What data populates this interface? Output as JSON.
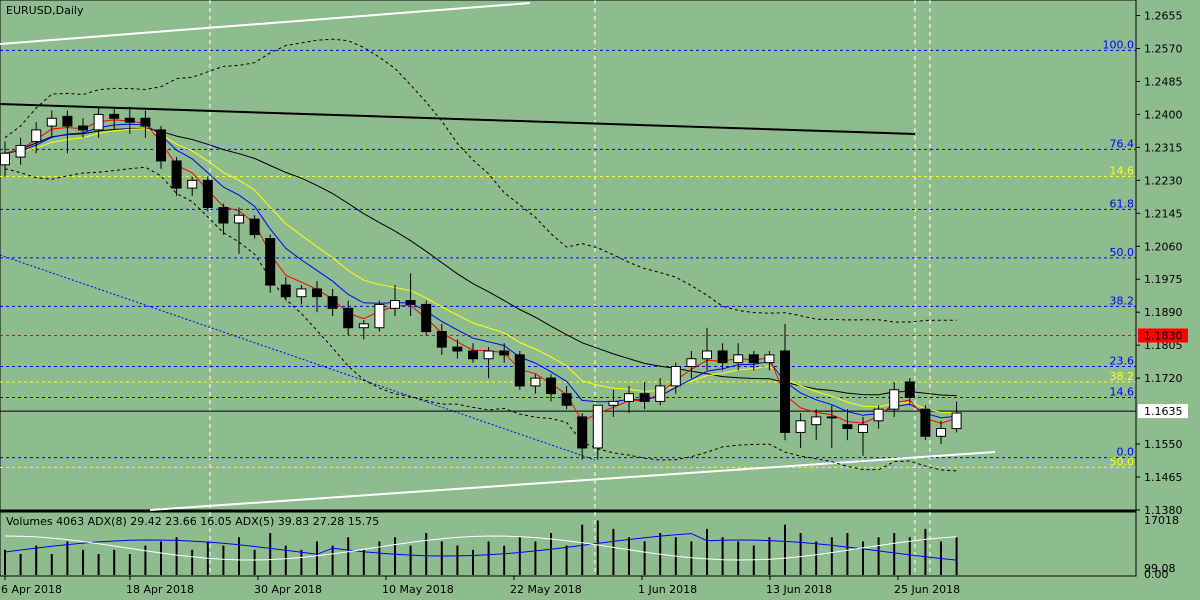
{
  "window": {
    "title": "EURUSD,Daily",
    "indicator_label": "Volumes 4063 ADX(8) 29.42 23.66 16.05 ADX(5) 39.83 27.28 15.75"
  },
  "colors": {
    "background": "#8fbc8f",
    "bull_candle": "#ffffff",
    "bear_candle": "#000000",
    "fib_blue": "#0000ff",
    "fib_yellow": "#ffff00",
    "resistance_red": "#ff0000",
    "ema_red": "#ff0000",
    "ema_blue": "#0000ff",
    "ema_yellow": "#ffff00",
    "ema_black": "#000000",
    "price_tag_bg": "#ffffff",
    "red_tag_bg": "#ff0000",
    "volume_line": "#000000",
    "adx_blue": "#0000ff",
    "adx_white": "#ffffff"
  },
  "chart_data": {
    "type": "candlestick",
    "symbol": "EURUSD",
    "timeframe": "Daily",
    "ylim": [
      1.138,
      1.2695
    ],
    "y_ticks": [
      "1.2655",
      "1.2570",
      "1.2485",
      "1.2400",
      "1.2315",
      "1.2230",
      "1.2145",
      "1.2060",
      "1.1975",
      "1.1890",
      "1.1805",
      "1.1720",
      "1.1550",
      "1.1465",
      "1.1380"
    ],
    "x_labels": [
      "6 Apr 2018",
      "18 Apr 2018",
      "30 Apr 2018",
      "10 May 2018",
      "22 May 2018",
      "1 Jun 2018",
      "13 Jun 2018",
      "25 Jun 2018"
    ],
    "current_price": "1.1635",
    "resistance_price": "1.1830",
    "candles": [
      {
        "o": 1.227,
        "h": 1.233,
        "l": 1.224,
        "c": 1.23
      },
      {
        "o": 1.229,
        "h": 1.234,
        "l": 1.227,
        "c": 1.232
      },
      {
        "o": 1.233,
        "h": 1.238,
        "l": 1.23,
        "c": 1.236
      },
      {
        "o": 1.237,
        "h": 1.241,
        "l": 1.234,
        "c": 1.239
      },
      {
        "o": 1.2395,
        "h": 1.241,
        "l": 1.23,
        "c": 1.237
      },
      {
        "o": 1.237,
        "h": 1.239,
        "l": 1.234,
        "c": 1.236
      },
      {
        "o": 1.236,
        "h": 1.242,
        "l": 1.234,
        "c": 1.24
      },
      {
        "o": 1.24,
        "h": 1.242,
        "l": 1.236,
        "c": 1.239
      },
      {
        "o": 1.239,
        "h": 1.242,
        "l": 1.235,
        "c": 1.238
      },
      {
        "o": 1.239,
        "h": 1.241,
        "l": 1.234,
        "c": 1.237
      },
      {
        "o": 1.236,
        "h": 1.237,
        "l": 1.226,
        "c": 1.228
      },
      {
        "o": 1.228,
        "h": 1.229,
        "l": 1.219,
        "c": 1.221
      },
      {
        "o": 1.221,
        "h": 1.224,
        "l": 1.219,
        "c": 1.223
      },
      {
        "o": 1.223,
        "h": 1.224,
        "l": 1.215,
        "c": 1.216
      },
      {
        "o": 1.216,
        "h": 1.217,
        "l": 1.209,
        "c": 1.212
      },
      {
        "o": 1.212,
        "h": 1.216,
        "l": 1.204,
        "c": 1.214
      },
      {
        "o": 1.213,
        "h": 1.214,
        "l": 1.208,
        "c": 1.209
      },
      {
        "o": 1.208,
        "h": 1.209,
        "l": 1.194,
        "c": 1.196
      },
      {
        "o": 1.196,
        "h": 1.198,
        "l": 1.192,
        "c": 1.193
      },
      {
        "o": 1.193,
        "h": 1.196,
        "l": 1.191,
        "c": 1.195
      },
      {
        "o": 1.195,
        "h": 1.197,
        "l": 1.189,
        "c": 1.193
      },
      {
        "o": 1.193,
        "h": 1.195,
        "l": 1.188,
        "c": 1.19
      },
      {
        "o": 1.19,
        "h": 1.192,
        "l": 1.183,
        "c": 1.185
      },
      {
        "o": 1.185,
        "h": 1.187,
        "l": 1.182,
        "c": 1.186
      },
      {
        "o": 1.185,
        "h": 1.192,
        "l": 1.184,
        "c": 1.191
      },
      {
        "o": 1.19,
        "h": 1.196,
        "l": 1.188,
        "c": 1.192
      },
      {
        "o": 1.192,
        "h": 1.199,
        "l": 1.188,
        "c": 1.191
      },
      {
        "o": 1.191,
        "h": 1.192,
        "l": 1.183,
        "c": 1.184
      },
      {
        "o": 1.184,
        "h": 1.186,
        "l": 1.178,
        "c": 1.18
      },
      {
        "o": 1.18,
        "h": 1.182,
        "l": 1.177,
        "c": 1.179
      },
      {
        "o": 1.179,
        "h": 1.181,
        "l": 1.176,
        "c": 1.177
      },
      {
        "o": 1.177,
        "h": 1.18,
        "l": 1.172,
        "c": 1.179
      },
      {
        "o": 1.179,
        "h": 1.181,
        "l": 1.176,
        "c": 1.178
      },
      {
        "o": 1.178,
        "h": 1.179,
        "l": 1.169,
        "c": 1.17
      },
      {
        "o": 1.17,
        "h": 1.173,
        "l": 1.168,
        "c": 1.172
      },
      {
        "o": 1.172,
        "h": 1.173,
        "l": 1.166,
        "c": 1.168
      },
      {
        "o": 1.168,
        "h": 1.17,
        "l": 1.164,
        "c": 1.165
      },
      {
        "o": 1.162,
        "h": 1.163,
        "l": 1.151,
        "c": 1.154
      },
      {
        "o": 1.154,
        "h": 1.165,
        "l": 1.151,
        "c": 1.165
      },
      {
        "o": 1.165,
        "h": 1.169,
        "l": 1.162,
        "c": 1.166
      },
      {
        "o": 1.166,
        "h": 1.17,
        "l": 1.163,
        "c": 1.168
      },
      {
        "o": 1.168,
        "h": 1.171,
        "l": 1.164,
        "c": 1.166
      },
      {
        "o": 1.166,
        "h": 1.172,
        "l": 1.165,
        "c": 1.17
      },
      {
        "o": 1.17,
        "h": 1.176,
        "l": 1.168,
        "c": 1.175
      },
      {
        "o": 1.175,
        "h": 1.179,
        "l": 1.172,
        "c": 1.177
      },
      {
        "o": 1.177,
        "h": 1.185,
        "l": 1.174,
        "c": 1.179
      },
      {
        "o": 1.179,
        "h": 1.181,
        "l": 1.174,
        "c": 1.176
      },
      {
        "o": 1.176,
        "h": 1.181,
        "l": 1.174,
        "c": 1.178
      },
      {
        "o": 1.178,
        "h": 1.179,
        "l": 1.174,
        "c": 1.176
      },
      {
        "o": 1.176,
        "h": 1.179,
        "l": 1.174,
        "c": 1.178
      },
      {
        "o": 1.179,
        "h": 1.186,
        "l": 1.156,
        "c": 1.158
      },
      {
        "o": 1.158,
        "h": 1.163,
        "l": 1.154,
        "c": 1.161
      },
      {
        "o": 1.16,
        "h": 1.164,
        "l": 1.156,
        "c": 1.162
      },
      {
        "o": 1.162,
        "h": 1.165,
        "l": 1.154,
        "c": 1.162
      },
      {
        "o": 1.16,
        "h": 1.164,
        "l": 1.156,
        "c": 1.159
      },
      {
        "o": 1.158,
        "h": 1.162,
        "l": 1.152,
        "c": 1.16
      },
      {
        "o": 1.161,
        "h": 1.165,
        "l": 1.159,
        "c": 1.164
      },
      {
        "o": 1.164,
        "h": 1.171,
        "l": 1.162,
        "c": 1.169
      },
      {
        "o": 1.171,
        "h": 1.172,
        "l": 1.165,
        "c": 1.167
      },
      {
        "o": 1.164,
        "h": 1.165,
        "l": 1.156,
        "c": 1.157
      },
      {
        "o": 1.157,
        "h": 1.161,
        "l": 1.155,
        "c": 1.159
      },
      {
        "o": 1.159,
        "h": 1.166,
        "l": 1.158,
        "c": 1.163
      }
    ],
    "fib_levels": [
      {
        "label": "100.0",
        "price": 1.2565,
        "color": "#0000ff"
      },
      {
        "label": "76.4",
        "price": 1.231,
        "color": "#0000ff"
      },
      {
        "label": "14.6",
        "price": 1.224,
        "color": "#ffff00"
      },
      {
        "label": "61.8",
        "price": 1.2155,
        "color": "#0000ff"
      },
      {
        "label": "50.0",
        "price": 1.203,
        "color": "#0000ff"
      },
      {
        "label": "38.2",
        "price": 1.1905,
        "color": "#0000ff"
      },
      {
        "label": "23.6",
        "price": 1.175,
        "color": "#0000ff"
      },
      {
        "label": "38.2",
        "price": 1.171,
        "color": "#ffff00"
      },
      {
        "label": "14.6",
        "price": 1.167,
        "color": "#0000ff"
      },
      {
        "label": "0.0",
        "price": 1.1515,
        "color": "#0000ff"
      },
      {
        "label": "50.0",
        "price": 1.149,
        "color": "#ffff00"
      }
    ],
    "volume_scale": [
      "17018",
      "99.08",
      "0.00"
    ],
    "volumes": [
      6,
      5,
      7,
      5,
      8,
      6,
      5,
      6,
      5,
      7,
      8,
      9,
      6,
      8,
      7,
      9,
      6,
      10,
      7,
      6,
      8,
      7,
      9,
      6,
      8,
      9,
      7,
      10,
      8,
      7,
      6,
      8,
      7,
      9,
      8,
      10,
      7,
      12,
      13,
      11,
      9,
      8,
      10,
      9,
      8,
      11,
      9,
      8,
      7,
      9,
      12,
      10,
      8,
      9,
      10,
      8,
      9,
      10,
      9,
      11,
      8,
      9
    ]
  }
}
